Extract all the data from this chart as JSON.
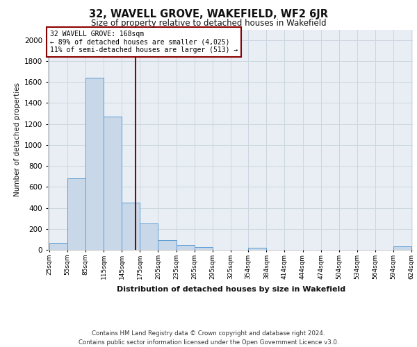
{
  "title": "32, WAVELL GROVE, WAKEFIELD, WF2 6JR",
  "subtitle": "Size of property relative to detached houses in Wakefield",
  "xlabel": "Distribution of detached houses by size in Wakefield",
  "ylabel": "Number of detached properties",
  "bar_edges": [
    25,
    55,
    85,
    115,
    145,
    175,
    205,
    235,
    265,
    295,
    325,
    354,
    384,
    414,
    444,
    474,
    504,
    534,
    564,
    594,
    624
  ],
  "bar_heights": [
    65,
    680,
    1640,
    1270,
    450,
    250,
    90,
    45,
    25,
    0,
    0,
    20,
    0,
    0,
    0,
    0,
    0,
    0,
    0,
    30
  ],
  "bar_color": "#c8d8e8",
  "bar_edgecolor": "#5b9bd5",
  "vline_x": 168,
  "vline_color": "#8b0000",
  "ylim": [
    0,
    2100
  ],
  "yticks": [
    0,
    200,
    400,
    600,
    800,
    1000,
    1200,
    1400,
    1600,
    1800,
    2000
  ],
  "annotation_text": "32 WAVELL GROVE: 168sqm\n← 89% of detached houses are smaller (4,025)\n11% of semi-detached houses are larger (513) →",
  "annotation_box_color": "#ffffff",
  "annotation_box_edgecolor": "#8b0000",
  "grid_color": "#ccd6e0",
  "bg_color": "#e8eef4",
  "footer": "Contains HM Land Registry data © Crown copyright and database right 2024.\nContains public sector information licensed under the Open Government Licence v3.0."
}
